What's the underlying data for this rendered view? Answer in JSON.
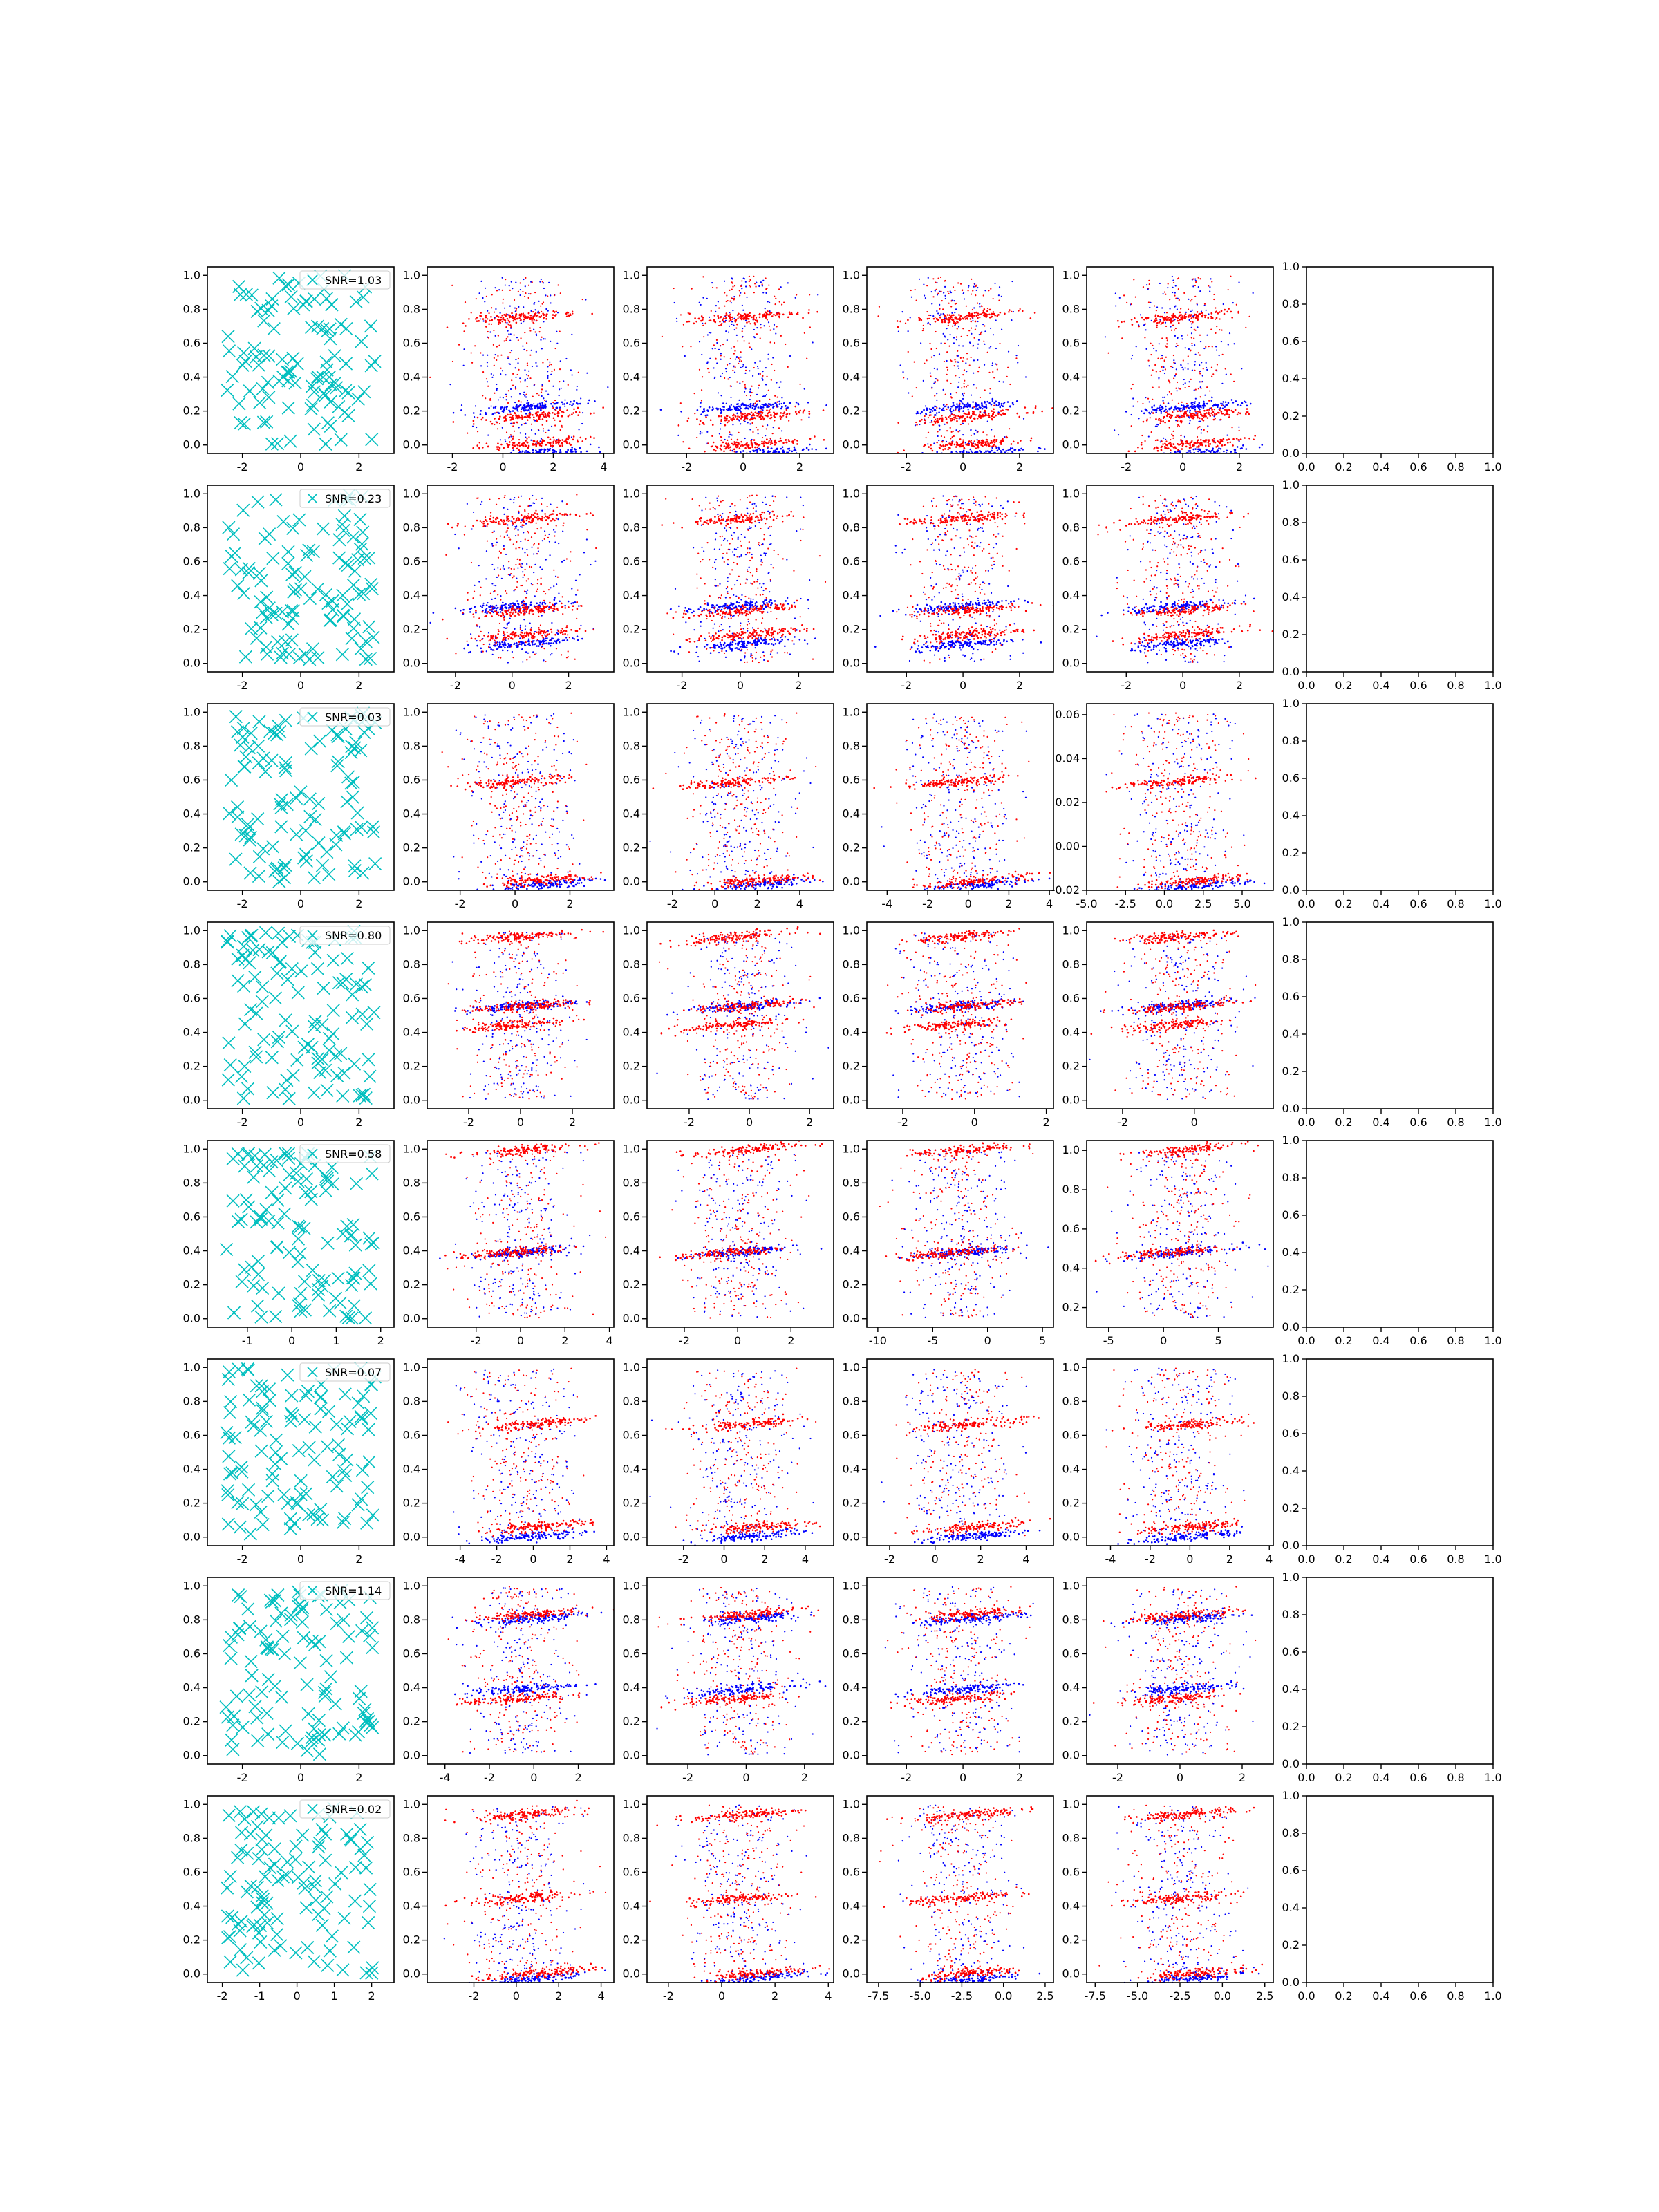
{
  "figure": {
    "rows": 8,
    "cols": 6,
    "column_x_ranges": [
      [
        [
          -3.2,
          3.2
        ],
        [
          -3.0,
          4.4
        ],
        [
          -3.4,
          3.2
        ],
        [
          -3.4,
          3.2
        ],
        [
          -3.4,
          3.2
        ],
        [
          0,
          1
        ]
      ],
      [
        [
          -3.2,
          3.2
        ],
        [
          -3.0,
          3.6
        ],
        [
          -3.2,
          3.2
        ],
        [
          -3.4,
          3.2
        ],
        [
          -3.4,
          3.2
        ],
        [
          0,
          1
        ]
      ],
      [
        [
          -3.2,
          3.2
        ],
        [
          -3.2,
          3.6
        ],
        [
          -3.2,
          5.6
        ],
        [
          -5.0,
          4.2
        ],
        [
          -5.0,
          7.0
        ],
        [
          0,
          1
        ]
      ],
      [
        [
          -3.2,
          3.2
        ],
        [
          -3.6,
          3.6
        ],
        [
          -3.4,
          2.8
        ],
        [
          -3.0,
          2.2
        ],
        [
          -3.0,
          2.2
        ],
        [
          0,
          1
        ]
      ],
      [
        [
          -1.9,
          2.3
        ],
        [
          -4.2,
          4.2
        ],
        [
          -3.4,
          3.6
        ],
        [
          -11.0,
          6.0
        ],
        [
          -7.0,
          10.0
        ],
        [
          0,
          1
        ]
      ],
      [
        [
          -3.2,
          3.2
        ],
        [
          -5.8,
          4.4
        ],
        [
          -3.8,
          5.4
        ],
        [
          -3.0,
          5.2
        ],
        [
          -5.2,
          4.2
        ],
        [
          0,
          1
        ]
      ],
      [
        [
          -3.2,
          3.2
        ],
        [
          -4.8,
          3.6
        ],
        [
          -3.4,
          3.0
        ],
        [
          -3.4,
          3.2
        ],
        [
          -3.0,
          3.0
        ],
        [
          0,
          1
        ]
      ],
      [
        [
          -2.4,
          2.6
        ],
        [
          -4.2,
          4.6
        ],
        [
          -2.8,
          4.2
        ],
        [
          -8.2,
          3.0
        ],
        [
          -8.0,
          3.0
        ],
        [
          0,
          1
        ]
      ]
    ],
    "column_y_ranges": [
      [
        [
          -0.05,
          1.05
        ],
        [
          -0.05,
          1.05
        ],
        [
          -0.05,
          1.05
        ],
        [
          -0.05,
          1.05
        ],
        [
          -0.05,
          1.05
        ],
        [
          0,
          1
        ]
      ],
      [
        [
          -0.05,
          1.05
        ],
        [
          -0.05,
          1.05
        ],
        [
          -0.05,
          1.05
        ],
        [
          -0.05,
          1.05
        ],
        [
          -0.05,
          1.05
        ],
        [
          0,
          1
        ]
      ],
      [
        [
          -0.05,
          1.05
        ],
        [
          -0.05,
          1.05
        ],
        [
          -0.05,
          1.05
        ],
        [
          -0.05,
          1.05
        ],
        [
          -0.02,
          0.065
        ],
        [
          0,
          1
        ]
      ],
      [
        [
          -0.05,
          1.05
        ],
        [
          -0.05,
          1.05
        ],
        [
          -0.05,
          1.05
        ],
        [
          -0.05,
          1.05
        ],
        [
          -0.05,
          1.05
        ],
        [
          0,
          1
        ]
      ],
      [
        [
          -0.05,
          1.05
        ],
        [
          -0.05,
          1.05
        ],
        [
          -0.05,
          1.05
        ],
        [
          -0.05,
          1.05
        ],
        [
          0.1,
          1.05
        ],
        [
          0,
          1
        ]
      ],
      [
        [
          -0.05,
          1.05
        ],
        [
          -0.05,
          1.05
        ],
        [
          -0.05,
          1.05
        ],
        [
          -0.05,
          1.05
        ],
        [
          -0.05,
          1.05
        ],
        [
          0,
          1
        ]
      ],
      [
        [
          -0.05,
          1.05
        ],
        [
          -0.05,
          1.05
        ],
        [
          -0.05,
          1.05
        ],
        [
          -0.05,
          1.05
        ],
        [
          -0.05,
          1.05
        ],
        [
          0,
          1
        ]
      ],
      [
        [
          -0.05,
          1.05
        ],
        [
          -0.05,
          1.05
        ],
        [
          -0.05,
          1.05
        ],
        [
          -0.05,
          1.05
        ],
        [
          -0.05,
          1.05
        ],
        [
          0,
          1
        ]
      ]
    ],
    "column_x_ticks": [
      [
        [
          "-2",
          "0",
          "2"
        ],
        [
          "-2",
          "0",
          "2",
          "4"
        ],
        [
          "-2",
          "0",
          "2"
        ],
        [
          "-2",
          "0",
          "2"
        ],
        [
          "-2",
          "0",
          "2"
        ],
        [
          "0.0",
          "0.2",
          "0.4",
          "0.6",
          "0.8",
          "1.0"
        ]
      ],
      [
        [
          "-2",
          "0",
          "2"
        ],
        [
          "-2",
          "0",
          "2"
        ],
        [
          "-2",
          "0",
          "2"
        ],
        [
          "-2",
          "0",
          "2"
        ],
        [
          "-2",
          "0",
          "2"
        ],
        [
          "0.0",
          "0.2",
          "0.4",
          "0.6",
          "0.8",
          "1.0"
        ]
      ],
      [
        [
          "-2",
          "0",
          "2"
        ],
        [
          "-2",
          "0",
          "2"
        ],
        [
          "-2",
          "0",
          "2",
          "4"
        ],
        [
          "-4",
          "-2",
          "0",
          "2",
          "4"
        ],
        [
          "-5.0",
          "-2.5",
          "0.0",
          "2.5",
          "5.0"
        ],
        [
          "0.0",
          "0.2",
          "0.4",
          "0.6",
          "0.8",
          "1.0"
        ]
      ],
      [
        [
          "-2",
          "0",
          "2"
        ],
        [
          "-2",
          "0",
          "2"
        ],
        [
          "-2",
          "0",
          "2"
        ],
        [
          "-2",
          "0",
          "2"
        ],
        [
          "-2",
          "0"
        ],
        [
          "0.0",
          "0.2",
          "0.4",
          "0.6",
          "0.8",
          "1.0"
        ]
      ],
      [
        [
          "-1",
          "0",
          "1",
          "2"
        ],
        [
          "-2",
          "0",
          "2",
          "4"
        ],
        [
          "-2",
          "0",
          "2"
        ],
        [
          "-10",
          "-5",
          "0",
          "5"
        ],
        [
          "-5",
          "0",
          "5"
        ],
        [
          "0.0",
          "0.2",
          "0.4",
          "0.6",
          "0.8",
          "1.0"
        ]
      ],
      [
        [
          "-2",
          "0",
          "2"
        ],
        [
          "-4",
          "-2",
          "0",
          "2",
          "4"
        ],
        [
          "-2",
          "0",
          "2",
          "4"
        ],
        [
          "-2",
          "0",
          "2",
          "4"
        ],
        [
          "-4",
          "-2",
          "0",
          "2",
          "4"
        ],
        [
          "0.0",
          "0.2",
          "0.4",
          "0.6",
          "0.8",
          "1.0"
        ]
      ],
      [
        [
          "-2",
          "0",
          "2"
        ],
        [
          "-4",
          "-2",
          "0",
          "2"
        ],
        [
          "-2",
          "0",
          "2"
        ],
        [
          "-2",
          "0",
          "2"
        ],
        [
          "-2",
          "0",
          "2"
        ],
        [
          "0.0",
          "0.2",
          "0.4",
          "0.6",
          "0.8",
          "1.0"
        ]
      ],
      [
        [
          "-2",
          "-1",
          "0",
          "1",
          "2"
        ],
        [
          "-2",
          "0",
          "2",
          "4"
        ],
        [
          "-2",
          "0",
          "2",
          "4"
        ],
        [
          "-7.5",
          "-5.0",
          "-2.5",
          "0.0",
          "2.5"
        ],
        [
          "-7.5",
          "-5.0",
          "-2.5",
          "0.0",
          "2.5"
        ],
        [
          "0.0",
          "0.2",
          "0.4",
          "0.6",
          "0.8",
          "1.0"
        ]
      ]
    ],
    "column_y_ticks": [
      [
        [
          "0.0",
          "0.2",
          "0.4",
          "0.6",
          "0.8",
          "1.0"
        ],
        [
          "0.0",
          "0.2",
          "0.4",
          "0.6",
          "0.8",
          "1.0"
        ],
        [
          "0.0",
          "0.2",
          "0.4",
          "0.6",
          "0.8",
          "1.0"
        ],
        [
          "0.0",
          "0.2",
          "0.4",
          "0.6",
          "0.8",
          "1.0"
        ],
        [
          "0.0",
          "0.2",
          "0.4",
          "0.6",
          "0.8",
          "1.0"
        ],
        [
          "0.0",
          "0.2",
          "0.4",
          "0.6",
          "0.8",
          "1.0"
        ]
      ],
      [
        [
          "0.0",
          "0.2",
          "0.4",
          "0.6",
          "0.8",
          "1.0"
        ],
        [
          "0.0",
          "0.2",
          "0.4",
          "0.6",
          "0.8",
          "1.0"
        ],
        [
          "0.0",
          "0.2",
          "0.4",
          "0.6",
          "0.8",
          "1.0"
        ],
        [
          "0.0",
          "0.2",
          "0.4",
          "0.6",
          "0.8",
          "1.0"
        ],
        [
          "0.0",
          "0.2",
          "0.4",
          "0.6",
          "0.8",
          "1.0"
        ],
        [
          "0.0",
          "0.2",
          "0.4",
          "0.6",
          "0.8",
          "1.0"
        ]
      ],
      [
        [
          "0.0",
          "0.2",
          "0.4",
          "0.6",
          "0.8",
          "1.0"
        ],
        [
          "0.0",
          "0.2",
          "0.4",
          "0.6",
          "0.8",
          "1.0"
        ],
        [
          "0.0",
          "0.2",
          "0.4",
          "0.6",
          "0.8",
          "1.0"
        ],
        [
          "0.0",
          "0.2",
          "0.4",
          "0.6",
          "0.8",
          "1.0"
        ],
        [
          "-0.02",
          "0.00",
          "0.02",
          "0.04",
          "0.06"
        ],
        [
          "0.0",
          "0.2",
          "0.4",
          "0.6",
          "0.8",
          "1.0"
        ]
      ],
      [
        [
          "0.0",
          "0.2",
          "0.4",
          "0.6",
          "0.8",
          "1.0"
        ],
        [
          "0.0",
          "0.2",
          "0.4",
          "0.6",
          "0.8",
          "1.0"
        ],
        [
          "0.0",
          "0.2",
          "0.4",
          "0.6",
          "0.8",
          "1.0"
        ],
        [
          "0.0",
          "0.2",
          "0.4",
          "0.6",
          "0.8",
          "1.0"
        ],
        [
          "0.0",
          "0.2",
          "0.4",
          "0.6",
          "0.8",
          "1.0"
        ],
        [
          "0.0",
          "0.2",
          "0.4",
          "0.6",
          "0.8",
          "1.0"
        ]
      ],
      [
        [
          "0.0",
          "0.2",
          "0.4",
          "0.6",
          "0.8",
          "1.0"
        ],
        [
          "0.0",
          "0.2",
          "0.4",
          "0.6",
          "0.8",
          "1.0"
        ],
        [
          "0.0",
          "0.2",
          "0.4",
          "0.6",
          "0.8",
          "1.0"
        ],
        [
          "0.0",
          "0.2",
          "0.4",
          "0.6",
          "0.8",
          "1.0"
        ],
        [
          "0.2",
          "0.4",
          "0.6",
          "0.8",
          "1.0"
        ],
        [
          "0.0",
          "0.2",
          "0.4",
          "0.6",
          "0.8",
          "1.0"
        ]
      ],
      [
        [
          "0.0",
          "0.2",
          "0.4",
          "0.6",
          "0.8",
          "1.0"
        ],
        [
          "0.0",
          "0.2",
          "0.4",
          "0.6",
          "0.8",
          "1.0"
        ],
        [
          "0.0",
          "0.2",
          "0.4",
          "0.6",
          "0.8",
          "1.0"
        ],
        [
          "0.0",
          "0.2",
          "0.4",
          "0.6",
          "0.8",
          "1.0"
        ],
        [
          "0.0",
          "0.2",
          "0.4",
          "0.6",
          "0.8",
          "1.0"
        ],
        [
          "0.0",
          "0.2",
          "0.4",
          "0.6",
          "0.8",
          "1.0"
        ]
      ],
      [
        [
          "0.0",
          "0.2",
          "0.4",
          "0.6",
          "0.8",
          "1.0"
        ],
        [
          "0.0",
          "0.2",
          "0.4",
          "0.6",
          "0.8",
          "1.0"
        ],
        [
          "0.0",
          "0.2",
          "0.4",
          "0.6",
          "0.8",
          "1.0"
        ],
        [
          "0.0",
          "0.2",
          "0.4",
          "0.6",
          "0.8",
          "1.0"
        ],
        [
          "0.0",
          "0.2",
          "0.4",
          "0.6",
          "0.8",
          "1.0"
        ],
        [
          "0.0",
          "0.2",
          "0.4",
          "0.6",
          "0.8",
          "1.0"
        ]
      ],
      [
        [
          "0.0",
          "0.2",
          "0.4",
          "0.6",
          "0.8",
          "1.0"
        ],
        [
          "0.0",
          "0.2",
          "0.4",
          "0.6",
          "0.8",
          "1.0"
        ],
        [
          "0.0",
          "0.2",
          "0.4",
          "0.6",
          "0.8",
          "1.0"
        ],
        [
          "0.0",
          "0.2",
          "0.4",
          "0.6",
          "0.8",
          "1.0"
        ],
        [
          "0.0",
          "0.2",
          "0.4",
          "0.6",
          "0.8",
          "1.0"
        ],
        [
          "0.0",
          "0.2",
          "0.4",
          "0.6",
          "0.8",
          "1.0"
        ]
      ]
    ],
    "colors": {
      "scatter_marker": "#00bfbf",
      "blue_points": "#0000ff",
      "red_points": "#ff0000",
      "marker_x": "#000000"
    }
  },
  "chart_data": [
    {
      "row": 1,
      "type": "scatter",
      "legend_text": "SNR=1.03",
      "red_bands": [
        [
          0.05,
          1.0
        ],
        [
          0.2,
          1.2
        ],
        [
          0.73,
          0.2
        ]
      ],
      "blue_bands": [
        [
          0.0,
          1.5
        ],
        [
          0.25,
          1.0
        ]
      ]
    },
    {
      "row": 2,
      "type": "scatter",
      "legend_text": "SNR=0.23",
      "red_bands": [
        [
          0.2,
          0.7
        ],
        [
          0.33,
          0.5
        ],
        [
          0.82,
          0.0
        ]
      ],
      "blue_bands": [
        [
          0.15,
          0.5
        ],
        [
          0.35,
          -0.5
        ]
      ]
    },
    {
      "row": 3,
      "type": "scatter",
      "legend_text": "SNR=0.03",
      "red_bands": [
        [
          0.05,
          1.5
        ],
        [
          0.58,
          -0.5
        ]
      ],
      "blue_bands": [
        [
          0.03,
          2.0
        ]
      ]
    },
    {
      "row": 4,
      "type": "scatter",
      "legend_text": "SNR=0.80",
      "red_bands": [
        [
          0.92,
          -0.5
        ],
        [
          0.55,
          0.5
        ],
        [
          0.45,
          -0.5
        ]
      ],
      "blue_bands": [
        [
          0.55,
          0.0
        ]
      ]
    },
    {
      "row": 5,
      "type": "scatter",
      "legend_text": "SNR=0.58",
      "red_bands": [
        [
          0.95,
          0.5
        ],
        [
          0.4,
          -1.0
        ]
      ],
      "blue_bands": [
        [
          0.4,
          0.0
        ]
      ]
    },
    {
      "row": 6,
      "type": "scatter",
      "legend_text": "SNR=0.07",
      "red_bands": [
        [
          0.65,
          1.0
        ],
        [
          0.1,
          1.5
        ]
      ],
      "blue_bands": [
        [
          0.05,
          1.0
        ]
      ]
    },
    {
      "row": 7,
      "type": "scatter",
      "legend_text": "SNR=1.14",
      "red_bands": [
        [
          0.8,
          0.5
        ],
        [
          0.35,
          -0.5
        ]
      ],
      "blue_bands": [
        [
          0.78,
          1.0
        ],
        [
          0.4,
          0.0
        ]
      ]
    },
    {
      "row": 8,
      "type": "scatter",
      "legend_text": "SNR=0.02",
      "red_bands": [
        [
          0.9,
          0.5
        ],
        [
          0.45,
          0.0
        ],
        [
          0.05,
          1.5
        ]
      ],
      "blue_bands": [
        [
          0.02,
          1.0
        ]
      ]
    }
  ]
}
